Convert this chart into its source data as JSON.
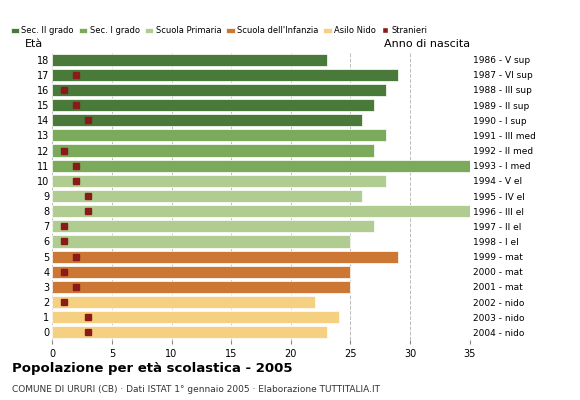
{
  "ages": [
    18,
    17,
    16,
    15,
    14,
    13,
    12,
    11,
    10,
    9,
    8,
    7,
    6,
    5,
    4,
    3,
    2,
    1,
    0
  ],
  "years": [
    "1986 - V sup",
    "1987 - VI sup",
    "1988 - III sup",
    "1989 - II sup",
    "1990 - I sup",
    "1991 - III med",
    "1992 - II med",
    "1993 - I med",
    "1994 - V el",
    "1995 - IV el",
    "1996 - III el",
    "1997 - II el",
    "1998 - I el",
    "1999 - mat",
    "2000 - mat",
    "2001 - mat",
    "2002 - nido",
    "2003 - nido",
    "2004 - nido"
  ],
  "bar_values": [
    23,
    29,
    28,
    27,
    26,
    28,
    27,
    35,
    28,
    26,
    35,
    27,
    25,
    29,
    25,
    25,
    22,
    24,
    23
  ],
  "bar_colors": [
    "#4a7a3a",
    "#4a7a3a",
    "#4a7a3a",
    "#4a7a3a",
    "#4a7a3a",
    "#7aaa5a",
    "#7aaa5a",
    "#7aaa5a",
    "#b0cc90",
    "#b0cc90",
    "#b0cc90",
    "#b0cc90",
    "#b0cc90",
    "#cc7733",
    "#cc7733",
    "#cc7733",
    "#f5d080",
    "#f5d080",
    "#f5d080"
  ],
  "stranieri_values": [
    0,
    2,
    1,
    2,
    3,
    0,
    1,
    2,
    2,
    3,
    3,
    1,
    1,
    2,
    1,
    2,
    1,
    3,
    3
  ],
  "stranieri_color": "#8b1a1a",
  "legend_labels": [
    "Sec. II grado",
    "Sec. I grado",
    "Scuola Primaria",
    "Scuola dell'Infanzia",
    "Asilo Nido",
    "Stranieri"
  ],
  "legend_colors": [
    "#4a7a3a",
    "#7aaa5a",
    "#b0cc90",
    "#cc7733",
    "#f5d080",
    "#8b1a1a"
  ],
  "ylabel": "Età",
  "right_label": "Anno di nascita",
  "title": "Popolazione per età scolastica - 2005",
  "subtitle": "COMUNE DI URURI (CB) · Dati ISTAT 1° gennaio 2005 · Elaborazione TUTTITALIA.IT",
  "xlim": [
    0,
    35
  ],
  "xticks": [
    0,
    5,
    10,
    15,
    20,
    25,
    30,
    35
  ],
  "background_color": "#ffffff",
  "bar_height": 0.8,
  "grid_color": "#bbbbbb"
}
